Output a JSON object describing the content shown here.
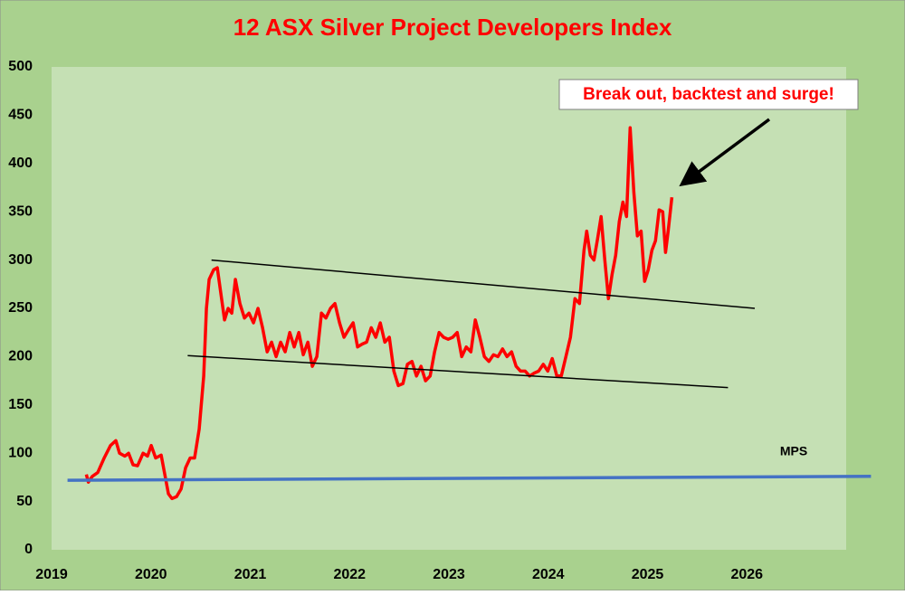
{
  "chart_data": {
    "type": "line",
    "title": "12 ASX Silver Project Developers Index",
    "annotation": "Break out, backtest and surge!",
    "xlim": [
      2019,
      2027
    ],
    "xticks": [
      2019,
      2020,
      2021,
      2022,
      2023,
      2024,
      2025,
      2026
    ],
    "ylim": [
      0,
      500
    ],
    "yticks": [
      0,
      50,
      100,
      150,
      200,
      250,
      300,
      350,
      400,
      450,
      500
    ],
    "grid": false,
    "series": [
      {
        "color": "#ff0000",
        "width": 3.5,
        "x": [
          2019.35,
          2019.37,
          2019.41,
          2019.465,
          2019.529,
          2019.593,
          2019.647,
          2019.684,
          2019.738,
          2019.775,
          2019.82,
          2019.866,
          2019.921,
          2019.966,
          2020.003,
          2020.048,
          2020.103,
          2020.14,
          2020.176,
          2020.212,
          2020.258,
          2020.304,
          2020.349,
          2020.395,
          2020.44,
          2020.486,
          2020.532,
          2020.559,
          2020.586,
          2020.632,
          2020.668,
          2020.705,
          2020.741,
          2020.778,
          2020.814,
          2020.851,
          2020.896,
          2020.942,
          2020.987,
          2021.033,
          2021.078,
          2021.124,
          2021.17,
          2021.215,
          2021.261,
          2021.306,
          2021.352,
          2021.398,
          2021.443,
          2021.489,
          2021.534,
          2021.58,
          2021.625,
          2021.671,
          2021.717,
          2021.762,
          2021.808,
          2021.853,
          2021.899,
          2021.944,
          2021.99,
          2022.036,
          2022.081,
          2022.127,
          2022.172,
          2022.218,
          2022.264,
          2022.309,
          2022.355,
          2022.4,
          2022.446,
          2022.491,
          2022.537,
          2022.583,
          2022.628,
          2022.674,
          2022.719,
          2022.765,
          2022.811,
          2022.856,
          2022.902,
          2022.947,
          2022.993,
          2023.038,
          2023.084,
          2023.129,
          2023.175,
          2023.221,
          2023.266,
          2023.312,
          2023.357,
          2023.403,
          2023.449,
          2023.494,
          2023.54,
          2023.585,
          2023.631,
          2023.677,
          2023.722,
          2023.768,
          2023.813,
          2023.859,
          2023.904,
          2023.95,
          2023.996,
          2024.041,
          2024.087,
          2024.132,
          2024.178,
          2024.224,
          2024.269,
          2024.315,
          2024.36,
          2024.388,
          2024.424,
          2024.461,
          2024.497,
          2024.533,
          2024.57,
          2024.606,
          2024.643,
          2024.679,
          2024.716,
          2024.752,
          2024.789,
          2024.825,
          2024.862,
          2024.898,
          2024.935,
          2024.971,
          2025.007,
          2025.044,
          2025.08,
          2025.117,
          2025.153,
          2025.181,
          2025.208,
          2025.245
        ],
        "values": [
          78,
          70,
          76,
          80,
          95,
          108,
          113,
          100,
          97,
          100,
          88,
          87,
          100,
          97,
          108,
          95,
          98,
          78,
          58,
          53,
          55,
          63,
          85,
          95,
          95,
          125,
          180,
          250,
          280,
          290,
          292,
          265,
          238,
          250,
          245,
          280,
          255,
          240,
          245,
          235,
          250,
          230,
          205,
          215,
          200,
          215,
          205,
          225,
          210,
          225,
          202,
          215,
          190,
          200,
          245,
          240,
          250,
          255,
          235,
          220,
          228,
          235,
          210,
          213,
          215,
          230,
          220,
          235,
          215,
          220,
          185,
          170,
          172,
          192,
          195,
          180,
          190,
          175,
          180,
          205,
          225,
          220,
          218,
          220,
          225,
          200,
          210,
          205,
          238,
          220,
          200,
          195,
          202,
          200,
          208,
          200,
          205,
          190,
          185,
          185,
          180,
          183,
          185,
          192,
          185,
          198,
          180,
          180,
          200,
          220,
          260,
          255,
          310,
          330,
          305,
          300,
          322,
          345,
          300,
          260,
          285,
          305,
          340,
          360,
          345,
          437,
          370,
          325,
          330,
          278,
          290,
          310,
          320,
          352,
          350,
          308,
          330,
          365
        ]
      },
      {
        "color": "#000000",
        "width": 1.5,
        "x": [
          2020.61,
          2026.08
        ],
        "values": [
          300,
          250
        ]
      },
      {
        "color": "#000000",
        "width": 1.5,
        "x": [
          2020.37,
          2025.81
        ],
        "values": [
          201,
          168
        ]
      },
      {
        "name": "MPS",
        "color": "#4472c4",
        "width": 3.5,
        "x": [
          2019.16,
          2027.25
        ],
        "values": [
          72,
          76
        ]
      }
    ]
  }
}
